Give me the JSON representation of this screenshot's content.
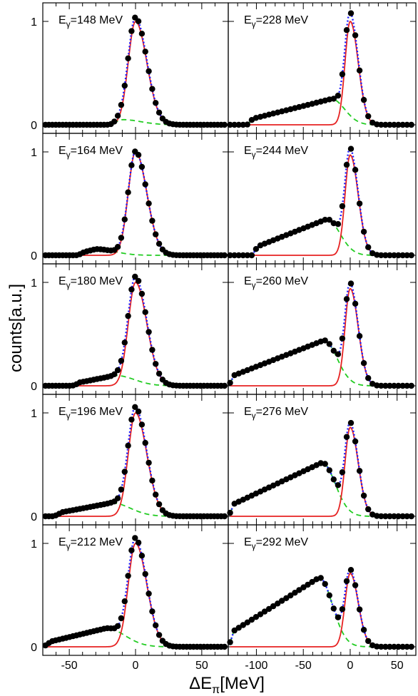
{
  "figure": {
    "ylabel": "counts[a.u.]",
    "xlabel": "ΔE",
    "xlabel_sub": "π",
    "xlabel_unit": "[MeV]",
    "colors": {
      "data": "#000000",
      "total_fit": "#1a1aff",
      "peak": "#e62222",
      "background": "#22cc22"
    }
  },
  "chart_data": [
    {
      "type": "line",
      "title": "148 MeV",
      "xlim": [
        -70,
        70
      ],
      "ylim": [
        0,
        1.12
      ],
      "yticks": [
        "0",
        "1"
      ],
      "xticks": [],
      "peak": 1.0,
      "bg": {
        "start": -20,
        "amp": 0.05,
        "center": -10
      }
    },
    {
      "type": "line",
      "title": "228 MeV",
      "xlim": [
        -130,
        70
      ],
      "ylim": [
        0,
        1.12
      ],
      "yticks": [
        "0",
        "1"
      ],
      "xticks": [],
      "peak": 1.0,
      "bg": {
        "start": -110,
        "amp": 0.25,
        "center": -20
      }
    },
    {
      "type": "line",
      "title": "164 MeV",
      "xlim": [
        -70,
        70
      ],
      "ylim": [
        0,
        1.12
      ],
      "yticks": [
        "0",
        "1"
      ],
      "xticks": [],
      "peak": 1.0,
      "bg": {
        "start": -45,
        "amp": 0.06,
        "center": -30
      }
    },
    {
      "type": "line",
      "title": "244 MeV",
      "xlim": [
        -130,
        70
      ],
      "ylim": [
        0,
        1.12
      ],
      "yticks": [
        "0",
        "1"
      ],
      "xticks": [],
      "peak": 0.97,
      "bg": {
        "start": -105,
        "amp": 0.35,
        "center": -25
      }
    },
    {
      "type": "line",
      "title": "180 MeV",
      "xlim": [
        -70,
        70
      ],
      "ylim": [
        0,
        1.12
      ],
      "yticks": [
        "0",
        "1"
      ],
      "xticks": [],
      "peak": 1.0,
      "bg": {
        "start": -48,
        "amp": 0.1,
        "center": -15
      }
    },
    {
      "type": "line",
      "title": "260 MeV",
      "xlim": [
        -130,
        70
      ],
      "ylim": [
        0,
        1.12
      ],
      "yticks": [
        "0",
        "1"
      ],
      "xticks": [],
      "peak": 0.94,
      "bg": {
        "start": -130,
        "amp": 0.44,
        "center": -28
      }
    },
    {
      "type": "line",
      "title": "196 MeV",
      "xlim": [
        -70,
        70
      ],
      "ylim": [
        0,
        1.12
      ],
      "yticks": [
        "0",
        "1"
      ],
      "xticks": [],
      "peak": 1.0,
      "bg": {
        "start": -62,
        "amp": 0.13,
        "center": -18
      }
    },
    {
      "type": "line",
      "title": "276 MeV",
      "xlim": [
        -130,
        70
      ],
      "ylim": [
        0,
        1.12
      ],
      "yticks": [
        "0",
        "1"
      ],
      "xticks": [],
      "peak": 0.86,
      "bg": {
        "start": -130,
        "amp": 0.52,
        "center": -30
      }
    },
    {
      "type": "line",
      "title": "212 MeV",
      "xlim": [
        -70,
        70
      ],
      "ylim": [
        0,
        1.12
      ],
      "yticks": [
        "0",
        "1"
      ],
      "xticks": [
        "-50",
        "0",
        "50"
      ],
      "xtickvals": [
        -50,
        0,
        50
      ],
      "peak": 1.0,
      "bg": {
        "start": -70,
        "amp": 0.18,
        "center": -22
      }
    },
    {
      "type": "line",
      "title": "292 MeV",
      "xlim": [
        -130,
        70
      ],
      "ylim": [
        0,
        1.12
      ],
      "yticks": [
        "0",
        "1"
      ],
      "xticks": [
        "-100",
        "-50",
        "0",
        "50"
      ],
      "xtickvals": [
        -100,
        -50,
        0,
        50
      ],
      "peak": 0.71,
      "bg": {
        "start": -130,
        "amp": 0.67,
        "center": -33
      }
    }
  ]
}
